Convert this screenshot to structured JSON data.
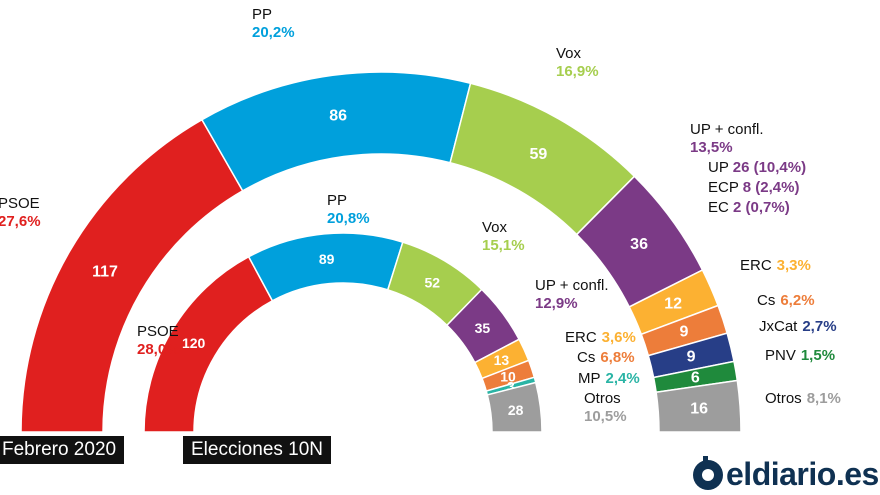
{
  "chart_data": [
    {
      "type": "parliament-arc",
      "title": "Febrero 2020",
      "parties": [
        {
          "name": "PSOE",
          "pct": "27,6%",
          "seats": 117,
          "color": "#e0201f"
        },
        {
          "name": "PP",
          "pct": "20,2%",
          "seats": 86,
          "color": "#00a0dc"
        },
        {
          "name": "Vox",
          "pct": "16,9%",
          "seats": 59,
          "color": "#a6ce4e"
        },
        {
          "name": "UP + confl.",
          "pct": "13,5%",
          "seats": 36,
          "color": "#7b3a86",
          "sub": [
            {
              "name": "UP",
              "seats": 26,
              "pct": "(10,4%)"
            },
            {
              "name": "ECP",
              "seats": 8,
              "pct": "(2,4%)"
            },
            {
              "name": "EC",
              "seats": 2,
              "pct": "(0,7%)"
            }
          ]
        },
        {
          "name": "ERC",
          "pct": "3,3%",
          "seats": 12,
          "color": "#fcb132"
        },
        {
          "name": "Cs",
          "pct": "6,2%",
          "seats": 9,
          "color": "#ed7d3a"
        },
        {
          "name": "JxCat",
          "pct": "2,7%",
          "seats": 9,
          "color": "#273e87"
        },
        {
          "name": "PNV",
          "pct": "1,5%",
          "seats": 6,
          "color": "#1f8a3c"
        },
        {
          "name": "Otros",
          "pct": "8,1%",
          "seats": 16,
          "color": "#9d9d9d"
        }
      ]
    },
    {
      "type": "parliament-arc",
      "title": "Elecciones 10N",
      "parties": [
        {
          "name": "PSOE",
          "pct": "28,0%",
          "seats": 120,
          "color": "#e0201f"
        },
        {
          "name": "PP",
          "pct": "20,8%",
          "seats": 89,
          "color": "#00a0dc"
        },
        {
          "name": "Vox",
          "pct": "15,1%",
          "seats": 52,
          "color": "#a6ce4e"
        },
        {
          "name": "UP + confl.",
          "pct": "12,9%",
          "seats": 35,
          "color": "#7b3a86"
        },
        {
          "name": "ERC",
          "pct": "3,6%",
          "seats": 13,
          "color": "#fcb132"
        },
        {
          "name": "Cs",
          "pct": "6,8%",
          "seats": 10,
          "color": "#ed7d3a"
        },
        {
          "name": "MP",
          "pct": "2,4%",
          "seats": 3,
          "color": "#2ab4a5"
        },
        {
          "name": "Otros",
          "pct": "10,5%",
          "seats": 28,
          "color": "#9d9d9d"
        }
      ]
    }
  ],
  "logo": {
    "text": "eldiario.es",
    "color": "#0f3152"
  }
}
